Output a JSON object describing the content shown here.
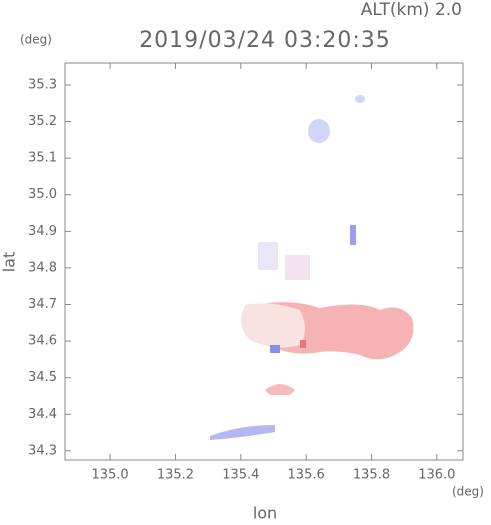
{
  "header": {
    "altitude": "ALT(km) 2.0",
    "y_unit": "(deg)",
    "x_unit": "(deg)"
  },
  "chart_data": {
    "type": "image",
    "title": "2019/03/24 03:20:35",
    "xlabel": "lon",
    "ylabel": "lat",
    "xlim": [
      134.862,
      136.08
    ],
    "ylim": [
      34.275,
      35.36
    ],
    "xticks": [
      {
        "value": 135,
        "label": "135.0"
      },
      135.2,
      135.4,
      135.6,
      135.8,
      {
        "value": 136,
        "label": "136.0"
      }
    ],
    "yticks": [
      34.3,
      34.4,
      34.5,
      34.6,
      34.7,
      34.8,
      34.9,
      {
        "value": 35,
        "label": "35.0"
      },
      35.1,
      35.2,
      35.3
    ]
  }
}
